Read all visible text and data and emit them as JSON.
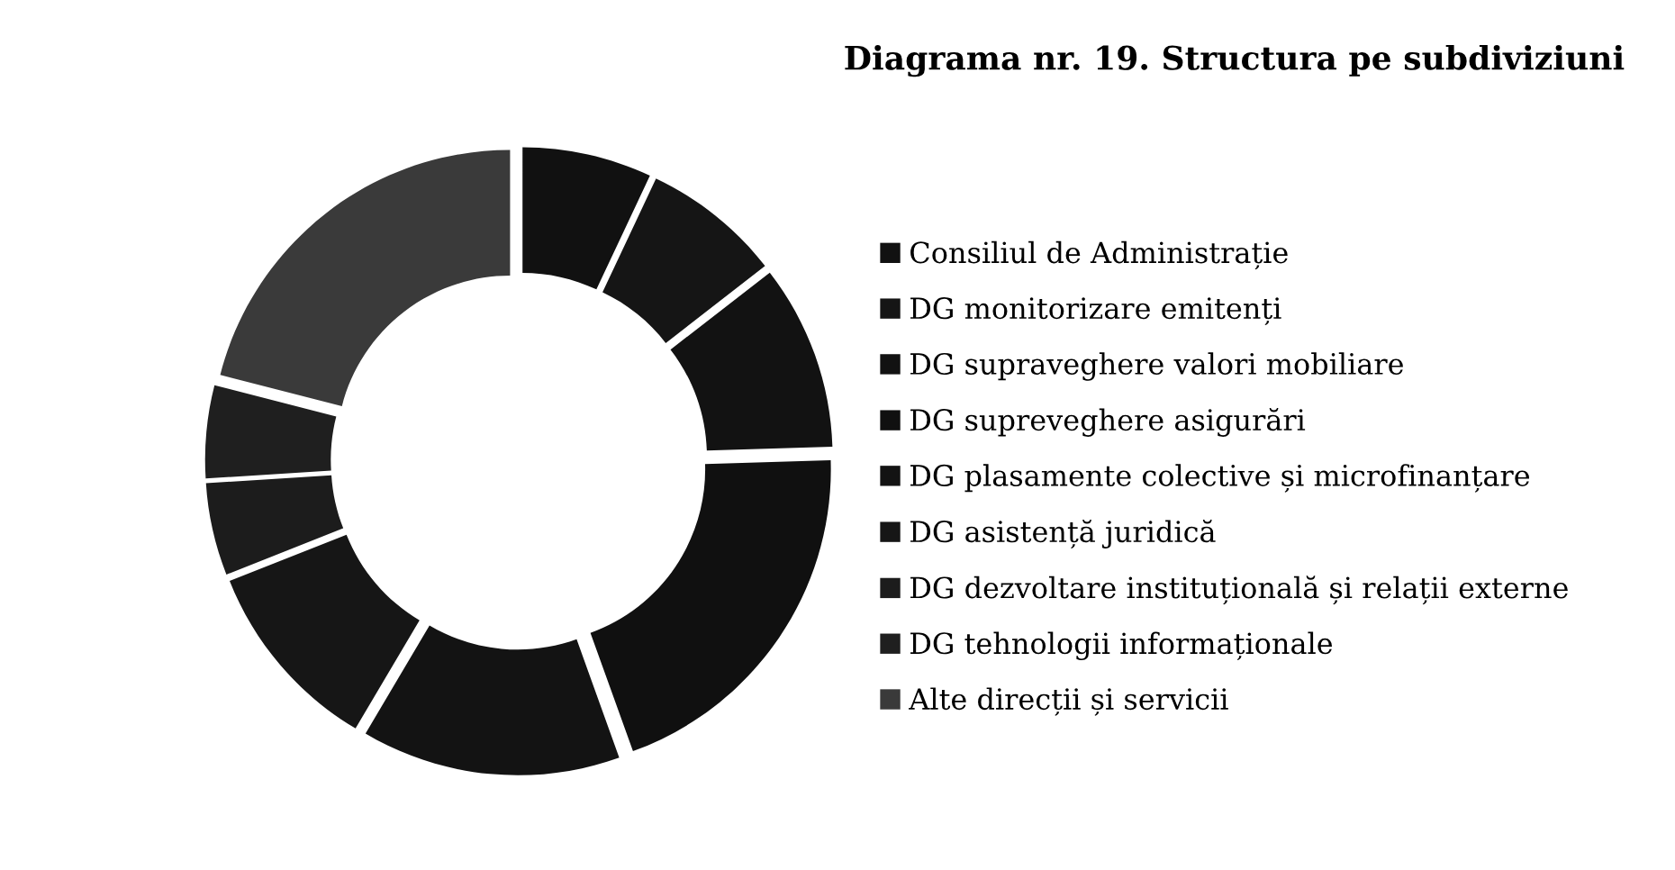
{
  "chart_data": {
    "type": "donut",
    "title": "Diagrama nr. 19. Structura pe subdiviziuni",
    "categories": [
      "Consiliul de Administrație",
      "DG monitorizare emitenți",
      "DG supraveghere valori mobiliare",
      "DG supreveghere asigurări",
      "DG plasamente colective și microfinanțare",
      "DG asistență juridică",
      "DG dezvoltare instituțională și relații externe",
      "DG tehnologii informaționale",
      "Alte direcții și servicii"
    ],
    "values": [
      7,
      7.5,
      10,
      20,
      14,
      10.5,
      5,
      5,
      21
    ],
    "colors": [
      "#111111",
      "#151515",
      "#121212",
      "#101010",
      "#131313",
      "#161616",
      "#1c1c1c",
      "#1f1f1f",
      "#3a3a3a"
    ],
    "legend": "right"
  }
}
